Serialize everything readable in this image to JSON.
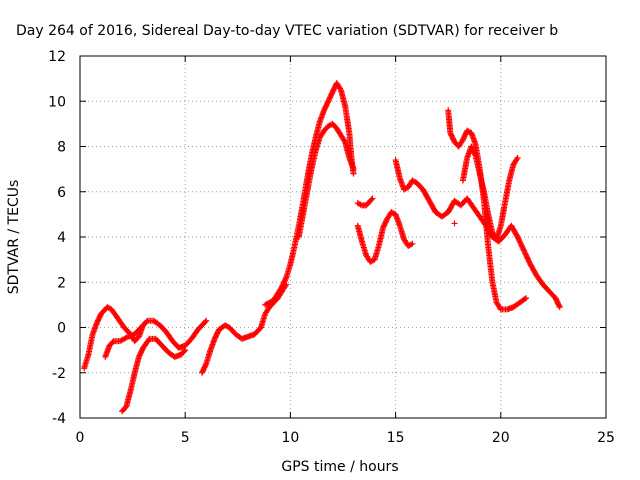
{
  "chart_data": {
    "type": "scatter",
    "title": "Day 264 of 2016, Sidereal Day-to-day VTEC variation (SDTVAR) for receiver b",
    "xlabel": "GPS time / hours",
    "ylabel": "SDTVAR / TECUs",
    "xlim": [
      0,
      25
    ],
    "ylim": [
      -4,
      12
    ],
    "xticks": [
      "0",
      "5",
      "10",
      "15",
      "20",
      "25"
    ],
    "yticks": [
      "-4",
      "-2",
      "0",
      "2",
      "4",
      "6",
      "8",
      "10",
      "12"
    ],
    "grid": true,
    "marker": "+",
    "color": "#ff0000",
    "series": [
      {
        "segments": [
          [
            [
              0.2,
              -1.8
            ],
            [
              0.4,
              -1.2
            ],
            [
              0.6,
              -0.3
            ],
            [
              0.8,
              0.2
            ],
            [
              1.0,
              0.6
            ],
            [
              1.3,
              0.9
            ],
            [
              1.5,
              0.8
            ],
            [
              1.8,
              0.4
            ],
            [
              2.1,
              0.0
            ],
            [
              2.4,
              -0.3
            ],
            [
              2.6,
              -0.6
            ],
            [
              2.8,
              -0.4
            ],
            [
              3.0,
              0.1
            ],
            [
              3.2,
              0.3
            ],
            [
              3.5,
              0.3
            ],
            [
              3.8,
              0.1
            ],
            [
              4.1,
              -0.2
            ],
            [
              4.4,
              -0.6
            ],
            [
              4.7,
              -0.9
            ],
            [
              5.0,
              -0.8
            ],
            [
              5.3,
              -0.5
            ],
            [
              5.6,
              -0.1
            ],
            [
              5.9,
              0.2
            ],
            [
              6.0,
              0.3
            ]
          ],
          [
            [
              1.2,
              -1.3
            ],
            [
              1.4,
              -0.8
            ],
            [
              1.6,
              -0.6
            ],
            [
              1.9,
              -0.6
            ],
            [
              2.1,
              -0.5
            ],
            [
              2.3,
              -0.4
            ],
            [
              2.6,
              -0.3
            ],
            [
              2.8,
              -0.1
            ],
            [
              3.0,
              0.1
            ]
          ],
          [
            [
              2.0,
              -3.7
            ],
            [
              2.2,
              -3.5
            ],
            [
              2.4,
              -2.8
            ],
            [
              2.6,
              -2.0
            ],
            [
              2.8,
              -1.3
            ],
            [
              3.0,
              -0.9
            ],
            [
              3.3,
              -0.5
            ],
            [
              3.6,
              -0.5
            ],
            [
              3.9,
              -0.8
            ],
            [
              4.2,
              -1.1
            ],
            [
              4.5,
              -1.3
            ],
            [
              4.8,
              -1.2
            ],
            [
              5.0,
              -1.0
            ]
          ],
          [
            [
              5.8,
              -2.0
            ],
            [
              6.0,
              -1.6
            ],
            [
              6.2,
              -1.0
            ],
            [
              6.4,
              -0.5
            ],
            [
              6.6,
              -0.1
            ],
            [
              6.9,
              0.1
            ],
            [
              7.1,
              0.0
            ],
            [
              7.4,
              -0.3
            ],
            [
              7.7,
              -0.5
            ],
            [
              8.0,
              -0.4
            ],
            [
              8.3,
              -0.3
            ],
            [
              8.6,
              0.0
            ],
            [
              8.8,
              0.6
            ],
            [
              9.0,
              0.9
            ],
            [
              9.2,
              1.1
            ],
            [
              9.4,
              1.3
            ],
            [
              9.6,
              1.6
            ],
            [
              9.8,
              1.9
            ]
          ],
          [
            [
              8.8,
              1.0
            ],
            [
              9.0,
              1.1
            ],
            [
              9.2,
              1.2
            ],
            [
              9.4,
              1.5
            ],
            [
              9.6,
              1.8
            ],
            [
              9.8,
              2.2
            ],
            [
              10.0,
              2.8
            ],
            [
              10.2,
              3.6
            ],
            [
              10.4,
              4.5
            ],
            [
              10.6,
              5.5
            ],
            [
              10.8,
              6.6
            ],
            [
              11.0,
              7.6
            ],
            [
              11.2,
              8.4
            ],
            [
              11.4,
              9.1
            ],
            [
              11.6,
              9.6
            ],
            [
              11.8,
              10.0
            ],
            [
              12.0,
              10.4
            ],
            [
              12.2,
              10.8
            ],
            [
              12.4,
              10.5
            ],
            [
              12.6,
              9.8
            ],
            [
              12.8,
              8.6
            ],
            [
              12.9,
              7.5
            ],
            [
              13.0,
              6.8
            ]
          ],
          [
            [
              10.4,
              4.0
            ],
            [
              10.6,
              5.0
            ],
            [
              10.8,
              6.0
            ],
            [
              11.0,
              7.0
            ],
            [
              11.2,
              7.8
            ],
            [
              11.4,
              8.4
            ],
            [
              11.6,
              8.7
            ],
            [
              11.8,
              8.9
            ],
            [
              12.0,
              9.0
            ],
            [
              12.2,
              8.8
            ],
            [
              12.4,
              8.5
            ],
            [
              12.6,
              8.2
            ],
            [
              12.8,
              7.5
            ],
            [
              13.0,
              7.0
            ]
          ],
          [
            [
              13.2,
              5.5
            ],
            [
              13.4,
              5.4
            ],
            [
              13.6,
              5.4
            ],
            [
              13.8,
              5.6
            ],
            [
              13.9,
              5.7
            ]
          ],
          [
            [
              13.2,
              4.5
            ],
            [
              13.4,
              3.8
            ],
            [
              13.6,
              3.2
            ],
            [
              13.8,
              2.9
            ],
            [
              14.0,
              3.0
            ],
            [
              14.2,
              3.6
            ],
            [
              14.4,
              4.4
            ],
            [
              14.6,
              4.8
            ],
            [
              14.8,
              5.1
            ],
            [
              15.0,
              5.0
            ],
            [
              15.2,
              4.5
            ],
            [
              15.4,
              3.9
            ],
            [
              15.6,
              3.6
            ],
            [
              15.8,
              3.7
            ]
          ],
          [
            [
              15.0,
              7.4
            ],
            [
              15.2,
              6.6
            ],
            [
              15.4,
              6.1
            ],
            [
              15.6,
              6.2
            ],
            [
              15.8,
              6.5
            ],
            [
              16.0,
              6.4
            ],
            [
              16.3,
              6.1
            ],
            [
              16.6,
              5.6
            ],
            [
              16.9,
              5.1
            ],
            [
              17.2,
              4.9
            ],
            [
              17.5,
              5.1
            ],
            [
              17.8,
              5.6
            ],
            [
              18.1,
              5.4
            ],
            [
              18.4,
              5.7
            ],
            [
              18.7,
              5.3
            ],
            [
              19.0,
              4.9
            ],
            [
              19.3,
              4.5
            ],
            [
              19.6,
              4.0
            ],
            [
              19.9,
              3.8
            ],
            [
              20.2,
              4.1
            ],
            [
              20.5,
              4.5
            ],
            [
              20.8,
              4.0
            ],
            [
              21.1,
              3.4
            ],
            [
              21.4,
              2.8
            ],
            [
              21.7,
              2.3
            ],
            [
              22.0,
              1.9
            ],
            [
              22.3,
              1.6
            ],
            [
              22.6,
              1.3
            ],
            [
              22.8,
              0.9
            ]
          ],
          [
            [
              17.5,
              9.6
            ],
            [
              17.6,
              8.6
            ],
            [
              17.8,
              8.2
            ],
            [
              18.0,
              8.0
            ],
            [
              18.2,
              8.3
            ],
            [
              18.4,
              8.7
            ],
            [
              18.6,
              8.6
            ],
            [
              18.8,
              8.1
            ],
            [
              19.0,
              7.0
            ],
            [
              19.2,
              5.6
            ],
            [
              19.4,
              3.6
            ],
            [
              19.6,
              2.0
            ],
            [
              19.8,
              1.1
            ],
            [
              20.0,
              0.8
            ],
            [
              20.3,
              0.8
            ],
            [
              20.6,
              0.9
            ],
            [
              20.9,
              1.1
            ],
            [
              21.2,
              1.3
            ]
          ],
          [
            [
              18.2,
              6.5
            ],
            [
              18.4,
              7.5
            ],
            [
              18.6,
              8.0
            ],
            [
              18.8,
              7.6
            ],
            [
              19.0,
              6.8
            ],
            [
              19.2,
              6.0
            ],
            [
              19.4,
              5.0
            ],
            [
              19.6,
              4.2
            ],
            [
              19.8,
              3.9
            ],
            [
              20.0,
              4.5
            ],
            [
              20.2,
              5.5
            ],
            [
              20.4,
              6.5
            ],
            [
              20.6,
              7.2
            ],
            [
              20.8,
              7.5
            ]
          ],
          [
            [
              17.8,
              4.6
            ]
          ]
        ]
      }
    ]
  }
}
